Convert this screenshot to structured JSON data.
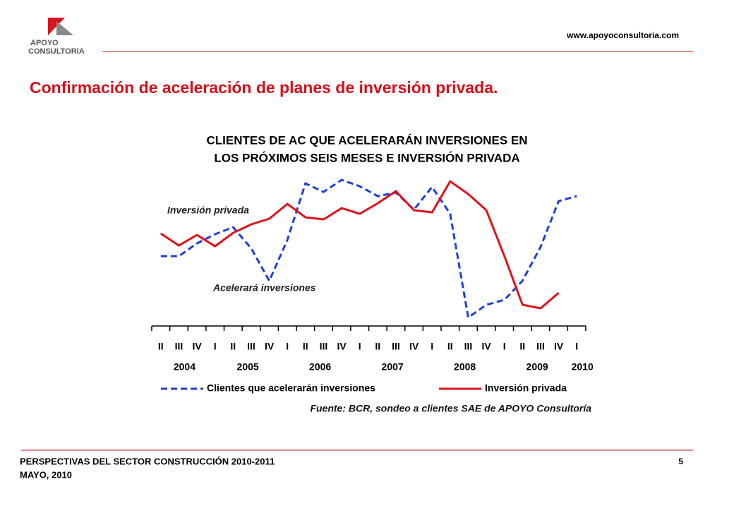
{
  "header": {
    "logo_line1": "APOYO",
    "logo_line2": "CONSULTORIA",
    "url": "www.apoyoconsultoria.com",
    "title": "Confirmación de aceleración de planes de inversión privada."
  },
  "chart_data": {
    "type": "line",
    "title_lines": [
      "CLIENTES  DE AC QUE ACELERARÁN  INVERSIONES EN",
      "LOS PRÓXIMOS SEIS MESES E INVERSIÓN PRIVADA"
    ],
    "categories": [
      "II",
      "III",
      "IV",
      "I",
      "II",
      "III",
      "IV",
      "I",
      "II",
      "III",
      "IV",
      "I",
      "II",
      "III",
      "IV",
      "I",
      "II",
      "III",
      "IV",
      "I",
      "II",
      "III",
      "IV",
      "I"
    ],
    "year_labels": [
      "2004",
      "2005",
      "2006",
      "2007",
      "2008",
      "2009",
      "2010"
    ],
    "series": [
      {
        "name": "Clientes que acelerarán inversiones",
        "color": "#1f3fd8",
        "dashed": true,
        "values": [
          137,
          137,
          155,
          168,
          178,
          148,
          102,
          160,
          240,
          228,
          245,
          236,
          222,
          227,
          203,
          235,
          197,
          50,
          68,
          75,
          102,
          150,
          215,
          222
        ]
      },
      {
        "name": "Inversión privada",
        "color": "#e0121b",
        "dashed": false,
        "values": [
          169,
          152,
          167,
          151,
          170,
          182,
          190,
          211,
          192,
          189,
          205,
          197,
          212,
          229,
          202,
          199,
          243,
          225,
          202,
          137,
          68,
          63,
          85,
          null
        ]
      }
    ],
    "ylim": [
      40,
      250
    ],
    "annotations": [
      "Inversión privada",
      "Acelerará inversiones"
    ],
    "source": "Fuente: BCR, sondeo a clientes SAE de APOYO Consultoría"
  },
  "footer": {
    "line1": "PERSPECTIVAS DEL SECTOR CONSTRUCCIÓN 2010-2011",
    "line2": "MAYO, 2010",
    "page": "5"
  }
}
